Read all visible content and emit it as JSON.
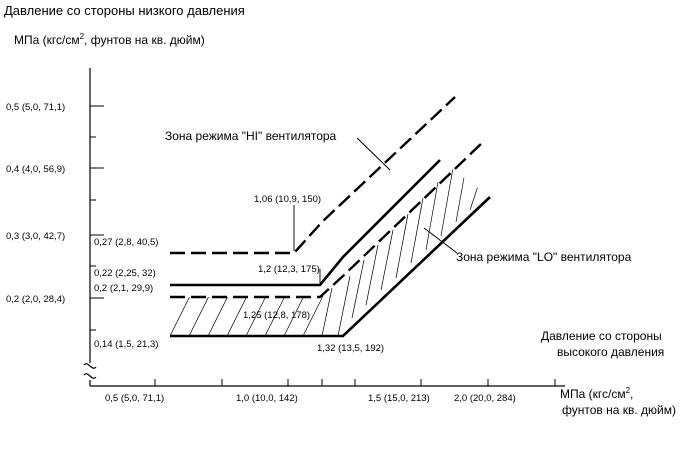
{
  "y_axis": {
    "title": "Давление со стороны низкого давления",
    "unit_prefix": "МПа (кгс/см",
    "unit_exp": "2",
    "unit_suffix": ", фунтов на кв. дюйм)",
    "ticks": [
      {
        "value": 0.5,
        "label": "0,5 (5,0, 71,1)"
      },
      {
        "value": 0.4,
        "label": "0,4 (4,0, 56,9)"
      },
      {
        "value": 0.3,
        "label": "0,3 (3,0, 42,7)"
      },
      {
        "value": 0.2,
        "label": "0,2 (2,0, 28,4)"
      }
    ]
  },
  "x_axis": {
    "title_line1": "Давление со стороны",
    "title_line2": "высокого давления",
    "unit_line1_prefix": "МПа (кгс/см",
    "unit_exp": "2",
    "unit_line1_suffix": ",",
    "unit_line2": "фунтов на кв. дюйм)",
    "ticks": [
      {
        "value": 0.5,
        "label": "0,5 (5,0, 71,1)"
      },
      {
        "value": 1.0,
        "label": "1,0 (10,0, 142)"
      },
      {
        "value": 1.5,
        "label": "1,5 (15,0, 213)"
      },
      {
        "value": 2.0,
        "label": "2,0 (20,0, 284)"
      }
    ]
  },
  "zones": {
    "hi_label": "Зона режима \"HI\" вентилятора",
    "lo_label": "Зона режима \"LO\" вентилятора"
  },
  "point_labels": {
    "p106": "1,06 (10,9, 150)",
    "p12": "1,2 (12,3, 175)",
    "p125": "1,25 (12,8, 178)",
    "p132": "1,32 (13,5, 192)",
    "p027": "0,27 (2,8, 40,5)",
    "p022": "0,22 (2,25, 32)",
    "p02": "0,2 (2,1, 29,9)",
    "p014": "0,14 (1,5, 21,3)"
  },
  "lines": {
    "hi_lower": [
      [
        1.06,
        0.27
      ],
      [
        1.2,
        0.27
      ],
      [
        1.8,
        0.57
      ]
    ],
    "hi_upper": [
      [
        1.2,
        0.22
      ],
      [
        1.42,
        0.22
      ],
      [
        1.85,
        0.435
      ]
    ],
    "lo_lower": [
      [
        1.25,
        0.2
      ],
      [
        1.25,
        0.2
      ],
      [
        1.95,
        0.54
      ]
    ],
    "lo_upper": [
      [
        1.32,
        0.14
      ],
      [
        1.52,
        0.14
      ],
      [
        2.0,
        0.38
      ]
    ]
  }
}
